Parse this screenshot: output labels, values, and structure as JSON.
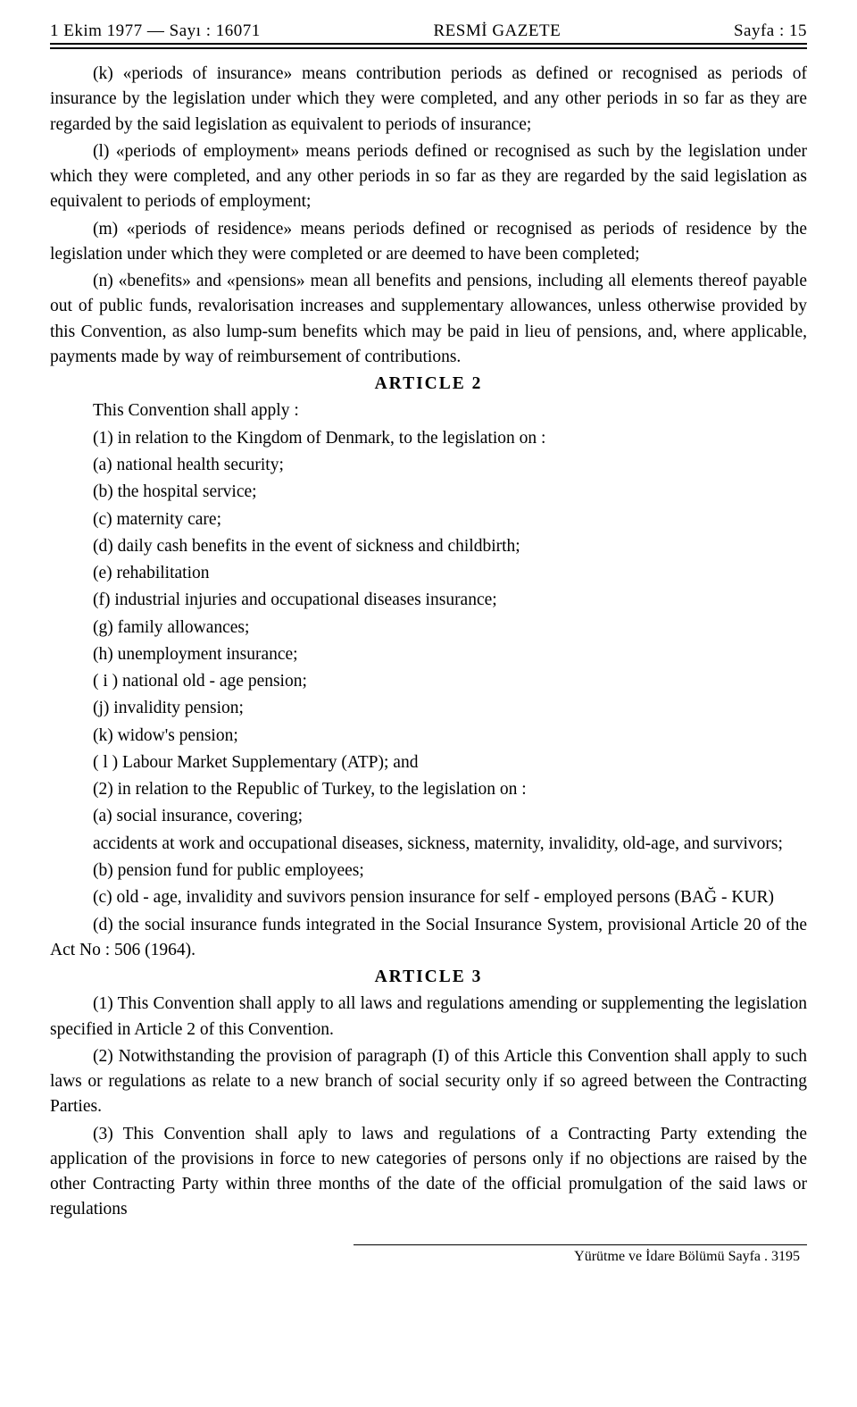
{
  "header": {
    "left": "1 Ekim 1977 — Sayı : 16071",
    "center": "RESMİ GAZETE",
    "right": "Sayfa : 15"
  },
  "para_k": "(k) «periods of insurance» means contribution periods as defined or recognised as periods of insurance by the legislation under which they were completed, and any other periods in so far as they are regarded by the said legislation as equivalent to periods of insurance;",
  "para_l": "(l) «periods of employment» means periods defined or recognised as such by the legislation under which they were completed, and any other periods in so far as they are regarded by the said legislation as equivalent to periods of employment;",
  "para_m": "(m) «periods of residence» means periods defined or recognised as periods of residence by the legislation under which they were completed or are deemed to have been completed;",
  "para_n": "(n) «benefits» and «pensions» mean all benefits and pensions, including all elements thereof payable out of public funds, revalorisation increases and supplementary allowances, unless otherwise provided by this Convention, as also lump-sum benefits which may be paid in lieu of pensions, and, where applicable, payments made by way of reimbursement of contributions.",
  "article2_heading": "ARTICLE 2",
  "a2_intro": "This Convention shall apply :",
  "a2_1": "(1) in relation to the Kingdom of Denmark, to the legislation on :",
  "a2_1a": "(a) national health security;",
  "a2_1b": "(b) the hospital service;",
  "a2_1c": "(c) maternity care;",
  "a2_1d": "(d) daily cash benefits in the event of sickness and childbirth;",
  "a2_1e": "(e) rehabilitation",
  "a2_1f": "(f) industrial injuries and occupational diseases insurance;",
  "a2_1g": "(g) family allowances;",
  "a2_1h": "(h) unemployment insurance;",
  "a2_1i": "( i ) national old - age pension;",
  "a2_1j": "(j) invalidity pension;",
  "a2_1k": "(k) widow's pension;",
  "a2_1l": "( l ) Labour Market Supplementary (ATP); and",
  "a2_2": "(2) in relation to the Republic of Turkey, to the legislation on :",
  "a2_2a": "(a) social insurance, covering;",
  "a2_2a_cont": "accidents at work and occupational diseases, sickness, maternity, invalidity, old-age, and survivors;",
  "a2_2b": "(b) pension fund for public employees;",
  "a2_2c": "(c) old - age, invalidity and suvivors pension insurance for self - employed persons (BAĞ - KUR)",
  "a2_2d": "(d) the social insurance funds integrated in the Social Insurance System, provisional Article 20 of the Act No : 506 (1964).",
  "article3_heading": "ARTICLE 3",
  "a3_1": "(1) This Convention shall apply to all laws and regulations amending or supplementing the legislation specified in Article 2 of this Convention.",
  "a3_2": "(2) Notwithstanding the provision of paragraph (I) of this Article this Convention shall apply to such laws or regulations as relate to a new branch of social security only if so agreed between the Contracting Parties.",
  "a3_3": "(3) This Convention shall aply to laws and regulations of a Contracting Party extending the application of the provisions in force to new categories of persons only if no objections are raised by the other Contracting Party within three months of the date of the official promulgation of the said laws or regulations",
  "footer": "Yürütme ve İdare Bölümü Sayfa . 3195"
}
